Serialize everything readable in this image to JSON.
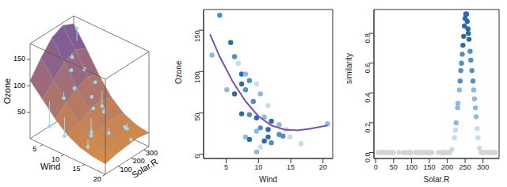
{
  "chart_data": [
    {
      "type": "surface3d",
      "x_label": "Wind",
      "y_label": "Solar.R",
      "z_label": "Ozone",
      "xlim": [
        2,
        20
      ],
      "ylim": [
        0,
        340
      ],
      "zlim": [
        0,
        180
      ],
      "xticks": [
        5,
        10,
        15,
        20
      ],
      "yticks": [
        100,
        200,
        300
      ],
      "zticks": [
        50,
        100,
        150
      ],
      "surface": {
        "x": [
          2,
          5,
          8,
          11,
          14,
          17,
          20
        ],
        "y": [
          0,
          85,
          170,
          255,
          340
        ],
        "z": [
          [
            110,
            140,
            165,
            175,
            165
          ],
          [
            85,
            110,
            130,
            140,
            130
          ],
          [
            60,
            78,
            92,
            100,
            92
          ],
          [
            40,
            52,
            62,
            66,
            60
          ],
          [
            28,
            36,
            42,
            45,
            40
          ],
          [
            22,
            28,
            32,
            34,
            30
          ],
          [
            20,
            25,
            28,
            30,
            26
          ]
        ]
      },
      "points": {
        "x": [
          4,
          5,
          6,
          7,
          8,
          9,
          7,
          10,
          11,
          12,
          13,
          10,
          15,
          14,
          17,
          20,
          9,
          12,
          16,
          6
        ],
        "y": [
          300,
          230,
          190,
          260,
          150,
          280,
          100,
          220,
          200,
          250,
          120,
          300,
          190,
          60,
          250,
          200,
          40,
          150,
          300,
          20
        ],
        "z": [
          170,
          130,
          115,
          110,
          95,
          90,
          80,
          75,
          60,
          50,
          35,
          45,
          30,
          20,
          40,
          35,
          25,
          20,
          25,
          35
        ]
      },
      "color": "#9fd6e3"
    },
    {
      "type": "scatter",
      "x_label": "Wind",
      "y_label": "Ozone",
      "xlim": [
        1.5,
        21.5
      ],
      "ylim": [
        -5,
        175
      ],
      "xticks": [
        5,
        10,
        15,
        20
      ],
      "yticks": [
        0,
        50,
        100,
        150
      ],
      "x": [
        4.0,
        2.8,
        5.7,
        6.3,
        6.9,
        7.4,
        8.0,
        8.6,
        7.4,
        9.7,
        8.0,
        5.1,
        6.3,
        10.3,
        9.2,
        11.5,
        7.4,
        8.6,
        10.9,
        9.7,
        12.0,
        13.2,
        10.3,
        11.5,
        14.3,
        9.7,
        13.8,
        11.5,
        14.9,
        8.0,
        12.0,
        16.6,
        10.9,
        20.7,
        10.3,
        9.7,
        8.6,
        13.2
      ],
      "values": [
        168,
        120,
        135,
        118,
        110,
        97,
        97,
        89,
        85,
        85,
        78,
        78,
        73,
        73,
        64,
        59,
        49,
        48,
        45,
        44,
        40,
        36,
        32,
        30,
        30,
        28,
        22,
        21,
        21,
        21,
        14,
        13,
        16,
        37,
        9,
        3,
        18,
        24
      ],
      "colors": [
        "#4f8fc4",
        "#8fb9dc",
        "#2b6aa8",
        "#4f8fc4",
        "#c5dbee",
        "#2b6aa8",
        "#8fb9dc",
        "#4f8fc4",
        "#2b6aa8",
        "#c5dbee",
        "#4f8fc4",
        "#8fb9dc",
        "#2b6aa8",
        "#8fb9dc",
        "#4f8fc4",
        "#c5dbee",
        "#2b6aa8",
        "#4f8fc4",
        "#8fb9dc",
        "#2b6aa8",
        "#2b6aa8",
        "#8fb9dc",
        "#4f8fc4",
        "#2b6aa8",
        "#c5dbee",
        "#8fb9dc",
        "#4f8fc4",
        "#2b6aa8",
        "#c5dbee",
        "#8fb9dc",
        "#4f8fc4",
        "#c5dbee",
        "#2b6aa8",
        "#8fb9dc",
        "#c5dbee",
        "#8fb9dc",
        "#2b6aa8",
        "#4f8fc4"
      ],
      "curve": {
        "x": [
          2.5,
          4,
          6,
          8,
          10,
          12,
          14,
          16,
          18,
          20.7
        ],
        "values": [
          145,
          118,
          88,
          64,
          46,
          35,
          30,
          29,
          31,
          35
        ],
        "color": "#7b52ab"
      }
    },
    {
      "type": "scatter",
      "x_label": "Solar.R",
      "y_label": "similarity",
      "xlim": [
        -5,
        345
      ],
      "ylim": [
        -0.04,
        0.96
      ],
      "xticks": [
        0,
        50,
        100,
        150,
        200,
        250,
        300
      ],
      "yticks": [
        {
          "value": 0,
          "label": "0.0"
        },
        0.2,
        0.4,
        0.6,
        0.8
      ],
      "x": [
        7,
        14,
        19,
        24,
        27,
        36,
        44,
        48,
        49,
        65,
        78,
        82,
        92,
        95,
        98,
        112,
        115,
        120,
        127,
        131,
        137,
        139,
        145,
        148,
        150,
        157,
        175,
        183,
        186,
        189,
        190,
        191,
        193,
        194,
        203,
        207,
        213,
        220,
        223,
        225,
        229,
        230,
        234,
        236,
        238,
        240,
        242,
        244,
        246,
        248,
        250,
        252,
        254,
        256,
        258,
        259,
        261,
        264,
        266,
        269,
        272,
        274,
        276,
        279,
        281,
        284,
        286,
        290,
        295,
        299,
        307,
        314,
        320,
        322,
        323,
        332,
        334
      ],
      "values": [
        0,
        0,
        0,
        0,
        0,
        0,
        0,
        0,
        0,
        0,
        0,
        0,
        0,
        0,
        0,
        0,
        0,
        0,
        0,
        0,
        0,
        0,
        0,
        0,
        0,
        0,
        0,
        0,
        0,
        0,
        0,
        0,
        0,
        0,
        0,
        0,
        0.02,
        0.1,
        0.15,
        0.2,
        0.3,
        0.33,
        0.42,
        0.48,
        0.55,
        0.6,
        0.66,
        0.72,
        0.78,
        0.85,
        0.9,
        0.93,
        0.93,
        0.88,
        0.83,
        0.8,
        0.76,
        0.68,
        0.62,
        0.55,
        0.48,
        0.42,
        0.36,
        0.3,
        0.24,
        0.16,
        0.1,
        0.03,
        0,
        0,
        0,
        0,
        0,
        0,
        0,
        0,
        0
      ],
      "colors": [
        "#d4d4d4",
        "#d4d4d4",
        "#d4d4d4",
        "#d4d4d4",
        "#d4d4d4",
        "#d4d4d4",
        "#d4d4d4",
        "#d4d4d4",
        "#d4d4d4",
        "#d4d4d4",
        "#d4d4d4",
        "#d4d4d4",
        "#d4d4d4",
        "#d4d4d4",
        "#d4d4d4",
        "#d4d4d4",
        "#d4d4d4",
        "#d4d4d4",
        "#d4d4d4",
        "#d4d4d4",
        "#d4d4d4",
        "#d4d4d4",
        "#d4d4d4",
        "#d4d4d4",
        "#d4d4d4",
        "#d4d4d4",
        "#d4d4d4",
        "#d4d4d4",
        "#d4d4d4",
        "#d4d4d4",
        "#d4d4d4",
        "#d4d4d4",
        "#d4d4d4",
        "#d4d4d4",
        "#d4d4d4",
        "#d4d4d4",
        "#c5dbee",
        "#c5dbee",
        "#c5dbee",
        "#8fb9dc",
        "#8fb9dc",
        "#8fb9dc",
        "#8fb9dc",
        "#4f8fc4",
        "#4f8fc4",
        "#4f8fc4",
        "#4f8fc4",
        "#2b6aa8",
        "#2b6aa8",
        "#2b6aa8",
        "#2b6aa8",
        "#2b6aa8",
        "#2b6aa8",
        "#2b6aa8",
        "#2b6aa8",
        "#2b6aa8",
        "#2b6aa8",
        "#4f8fc4",
        "#4f8fc4",
        "#4f8fc4",
        "#4f8fc4",
        "#8fb9dc",
        "#8fb9dc",
        "#8fb9dc",
        "#8fb9dc",
        "#c5dbee",
        "#c5dbee",
        "#c5dbee",
        "#d4d4d4",
        "#d4d4d4",
        "#d4d4d4",
        "#d4d4d4",
        "#d4d4d4",
        "#d4d4d4",
        "#d4d4d4",
        "#d4d4d4",
        "#d4d4d4"
      ]
    }
  ]
}
